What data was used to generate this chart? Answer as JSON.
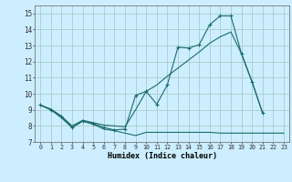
{
  "xlabel": "Humidex (Indice chaleur)",
  "bg_color": "#cceeff",
  "grid_color": "#aacccc",
  "line_color": "#1a6b6b",
  "x": [
    0,
    1,
    2,
    3,
    4,
    5,
    6,
    7,
    8,
    9,
    10,
    11,
    12,
    13,
    14,
    15,
    16,
    17,
    18,
    19,
    20,
    21,
    22,
    23
  ],
  "line1": [
    9.3,
    9.0,
    8.5,
    7.9,
    8.3,
    8.1,
    7.8,
    7.7,
    7.55,
    7.4,
    7.6,
    7.6,
    7.6,
    7.6,
    7.6,
    7.6,
    7.6,
    7.55,
    7.55,
    7.55,
    7.55,
    7.55,
    7.55,
    7.55
  ],
  "line2_x": [
    0,
    1,
    2,
    3,
    4,
    5,
    6,
    7,
    8,
    9,
    10,
    11,
    12,
    13,
    14,
    15,
    16,
    17,
    18,
    19,
    20,
    21
  ],
  "line2_y": [
    9.3,
    9.0,
    8.6,
    7.9,
    8.3,
    8.15,
    7.9,
    7.75,
    7.8,
    9.9,
    10.15,
    9.35,
    10.55,
    12.9,
    12.85,
    13.05,
    14.3,
    14.85,
    14.85,
    12.5,
    10.75,
    8.8
  ],
  "line3_x": [
    0,
    1,
    2,
    3,
    4,
    5,
    6,
    7,
    8,
    9,
    10,
    11,
    12,
    13,
    14,
    15,
    16,
    17,
    18,
    19,
    20,
    21
  ],
  "line3_y": [
    9.3,
    9.05,
    8.6,
    8.0,
    8.35,
    8.2,
    8.05,
    8.0,
    7.95,
    9.0,
    10.15,
    10.55,
    11.1,
    11.6,
    12.1,
    12.6,
    13.15,
    13.55,
    13.85,
    12.5,
    10.75,
    8.8
  ],
  "ylim": [
    7,
    15.5
  ],
  "xlim": [
    -0.5,
    23.5
  ],
  "yticks": [
    7,
    8,
    9,
    10,
    11,
    12,
    13,
    14,
    15
  ],
  "xtick_labels": [
    "0",
    "1",
    "2",
    "3",
    "4",
    "5",
    "6",
    "7",
    "8",
    "9",
    "10",
    "11",
    "12",
    "13",
    "14",
    "15",
    "16",
    "17",
    "18",
    "19",
    "20",
    "21",
    "22",
    "23"
  ]
}
